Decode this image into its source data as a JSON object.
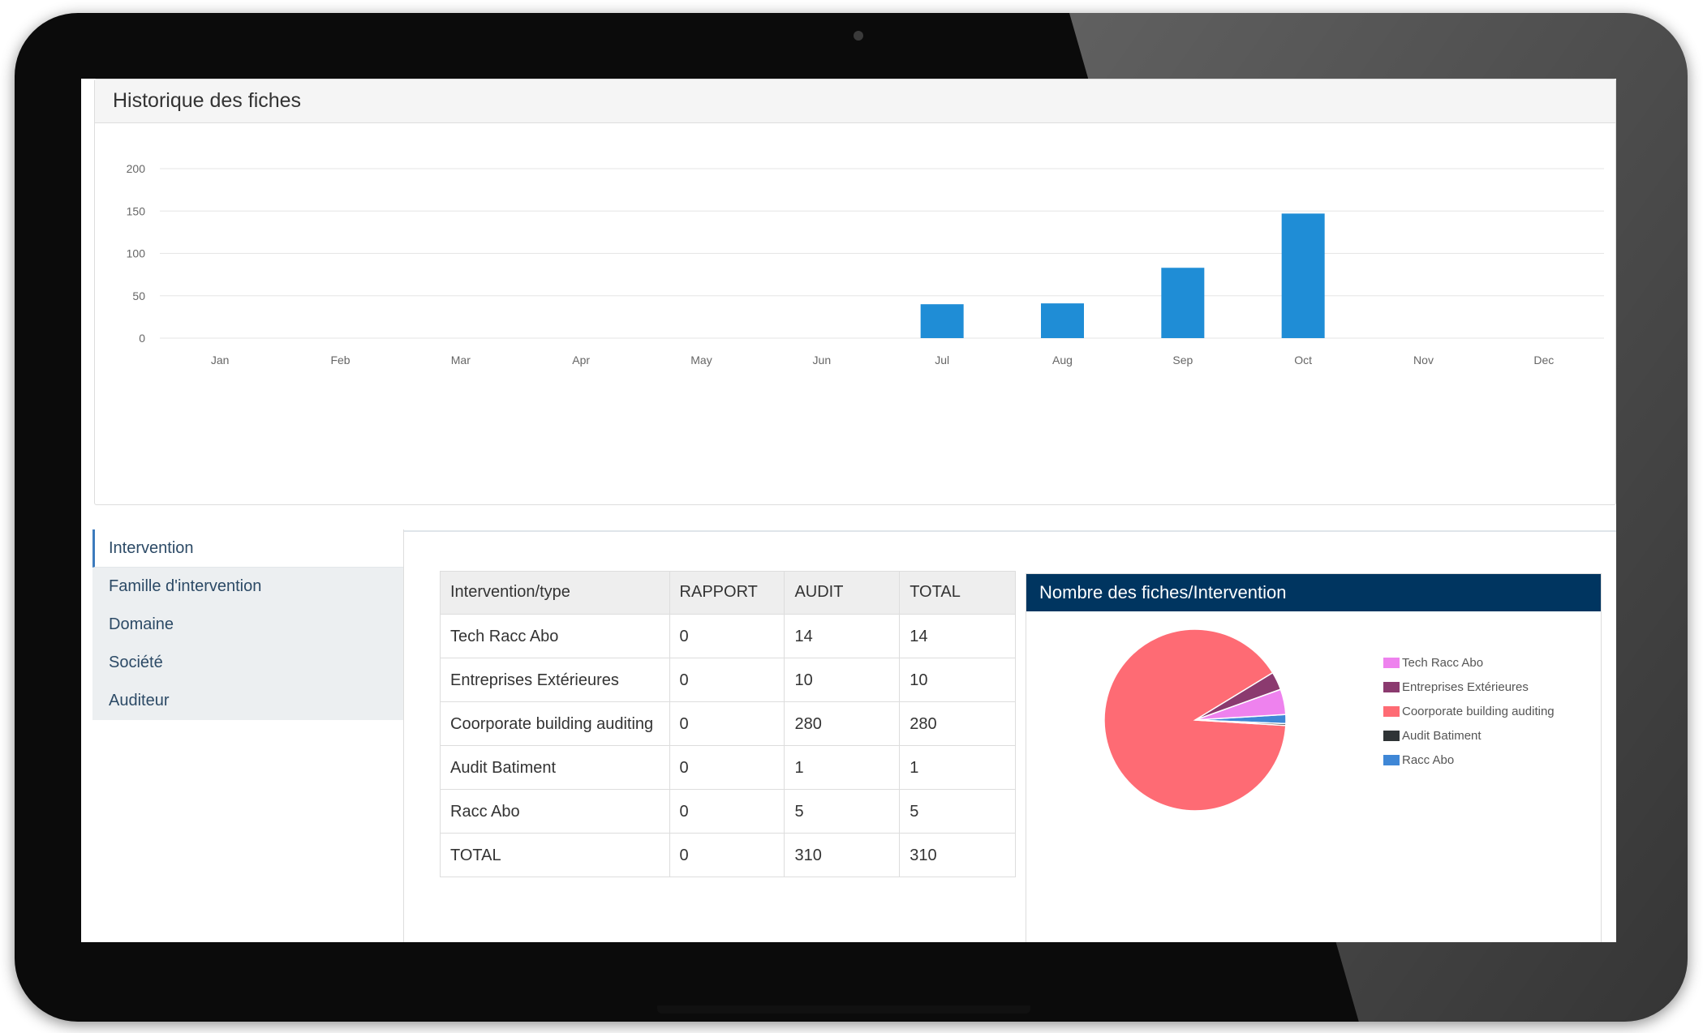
{
  "top_panel": {
    "title": "Historique des fiches"
  },
  "chart_data": [
    {
      "type": "bar",
      "categories": [
        "Jan",
        "Feb",
        "Mar",
        "Apr",
        "May",
        "Jun",
        "Jul",
        "Aug",
        "Sep",
        "Oct",
        "Nov",
        "Dec"
      ],
      "values": [
        0,
        0,
        0,
        0,
        0,
        0,
        40,
        41,
        83,
        147,
        0,
        0
      ],
      "yticks": [
        "0",
        "50",
        "100",
        "150",
        "200"
      ],
      "ylim": [
        0,
        200
      ],
      "grid": true,
      "color": "#1f8dd6"
    },
    {
      "type": "pie",
      "title": "Nombre des fiches/Intervention",
      "labels": [
        "Tech Racc Abo",
        "Entreprises Extérieures",
        "Coorporate building auditing",
        "Audit Batiment",
        "Racc Abo"
      ],
      "values": [
        14,
        10,
        280,
        1,
        5
      ],
      "colors": [
        "#ee82ee",
        "#8b3a6f",
        "#fe6b74",
        "#2f3436",
        "#3f87d6"
      ],
      "legend_position": "right"
    }
  ],
  "sidebar": {
    "items": [
      {
        "label": "Intervention"
      },
      {
        "label": "Famille d'intervention"
      },
      {
        "label": "Domaine"
      },
      {
        "label": "Société"
      },
      {
        "label": "Auditeur"
      }
    ]
  },
  "table": {
    "headers": [
      "Intervention/type",
      "RAPPORT",
      "AUDIT",
      "TOTAL"
    ],
    "rows": [
      [
        "Tech Racc Abo",
        "0",
        "14",
        "14"
      ],
      [
        "Entreprises Extérieures",
        "0",
        "10",
        "10"
      ],
      [
        "Coorporate building auditing",
        "0",
        "280",
        "280"
      ],
      [
        "Audit Batiment",
        "0",
        "1",
        "1"
      ],
      [
        "Racc Abo",
        "0",
        "5",
        "5"
      ],
      [
        "TOTAL",
        "0",
        "310",
        "310"
      ]
    ]
  },
  "pie_panel": {
    "title": "Nombre des fiches/Intervention"
  }
}
